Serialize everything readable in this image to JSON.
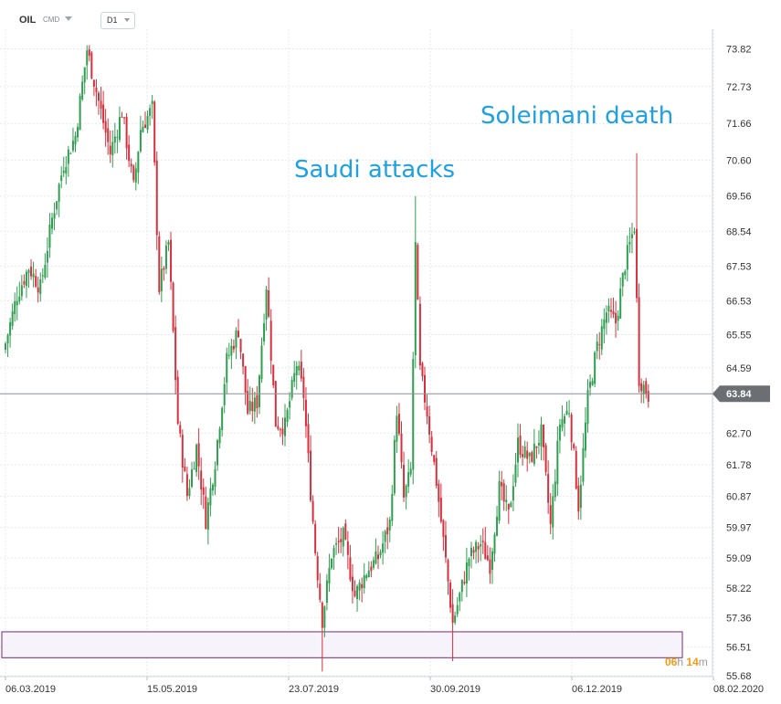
{
  "toolbar": {
    "symbol": "OIL",
    "source": "CMD",
    "timeframe": "D1"
  },
  "timer": {
    "hours": "06",
    "h_unit": "h",
    "minutes": "14",
    "m_unit": "m"
  },
  "colors": {
    "up": "#2e9e4f",
    "down": "#d6303d",
    "label": "#1da1e2",
    "current_line": "#8a8f94",
    "zone": "#7b2a6e"
  },
  "chart_data": {
    "type": "candlestick",
    "title": "",
    "xlabel": "",
    "ylabel": "",
    "ylim": [
      55.68,
      74.3
    ],
    "yticks": [
      "73.82",
      "72.73",
      "71.66",
      "70.60",
      "69.56",
      "68.54",
      "67.53",
      "66.53",
      "65.55",
      "64.59",
      "62.70",
      "61.78",
      "60.87",
      "59.97",
      "59.09",
      "58.22",
      "57.36",
      "56.51",
      "55.68"
    ],
    "xticks": [
      "06.03.2019",
      "15.05.2019",
      "23.07.2019",
      "30.09.2019",
      "06.12.2019",
      "08.02.2020"
    ],
    "current_price": {
      "label": "63.84",
      "value": 63.84
    },
    "zone": {
      "low": 56.2,
      "high": 56.95
    },
    "annotations": [
      {
        "id": "saudi",
        "text": "Saudi attacks"
      },
      {
        "id": "soleimani",
        "text": "Soleimani death"
      }
    ],
    "anchors": [
      [
        0,
        65.3
      ],
      [
        5,
        66.7
      ],
      [
        10,
        67.5
      ],
      [
        15,
        66.9
      ],
      [
        20,
        68.9
      ],
      [
        25,
        70.5
      ],
      [
        30,
        71.3
      ],
      [
        35,
        73.8
      ],
      [
        40,
        72.3
      ],
      [
        45,
        70.8
      ],
      [
        50,
        72.0
      ],
      [
        55,
        69.8
      ],
      [
        58,
        71.5
      ],
      [
        63,
        72.1
      ],
      [
        66,
        66.9
      ],
      [
        70,
        68.2
      ],
      [
        74,
        63.0
      ],
      [
        78,
        60.9
      ],
      [
        82,
        62.3
      ],
      [
        86,
        60.2
      ],
      [
        90,
        61.9
      ],
      [
        95,
        64.8
      ],
      [
        100,
        65.7
      ],
      [
        104,
        63.3
      ],
      [
        108,
        63.6
      ],
      [
        112,
        67.0
      ],
      [
        116,
        63.0
      ],
      [
        120,
        62.9
      ],
      [
        125,
        64.7
      ],
      [
        128,
        63.8
      ],
      [
        131,
        61.0
      ],
      [
        133,
        59.3
      ],
      [
        136,
        57.3
      ],
      [
        140,
        59.2
      ],
      [
        145,
        59.7
      ],
      [
        150,
        58.0
      ],
      [
        155,
        58.7
      ],
      [
        160,
        59.1
      ],
      [
        165,
        60.1
      ],
      [
        168,
        63.4
      ],
      [
        171,
        60.8
      ],
      [
        174,
        61.6
      ],
      [
        176,
        68.1
      ],
      [
        178,
        64.5
      ],
      [
        181,
        63.3
      ],
      [
        185,
        61.3
      ],
      [
        189,
        59.0
      ],
      [
        192,
        57.2
      ],
      [
        195,
        58.0
      ],
      [
        199,
        59.1
      ],
      [
        204,
        59.5
      ],
      [
        208,
        58.9
      ],
      [
        212,
        61.1
      ],
      [
        216,
        60.3
      ],
      [
        220,
        62.4
      ],
      [
        225,
        61.9
      ],
      [
        230,
        62.7
      ],
      [
        234,
        60.0
      ],
      [
        238,
        63.0
      ],
      [
        242,
        63.4
      ],
      [
        246,
        60.6
      ],
      [
        250,
        63.7
      ],
      [
        254,
        65.2
      ],
      [
        258,
        66.2
      ],
      [
        262,
        65.9
      ],
      [
        266,
        67.6
      ],
      [
        270,
        68.7
      ],
      [
        272,
        64.3
      ],
      [
        276,
        63.8
      ]
    ],
    "spikes": {
      "136": 55.8,
      "176": 69.56,
      "192": 56.1,
      "271": 70.8
    }
  }
}
